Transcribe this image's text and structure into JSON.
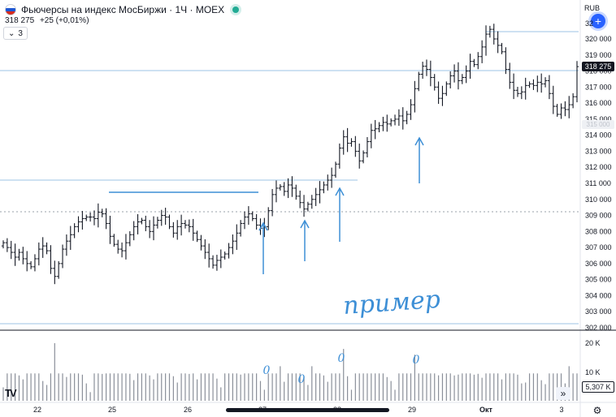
{
  "header": {
    "title": "Фьючерсы на индекс МосБиржи · 1Ч · MOEX",
    "price": "318 275",
    "change": "+25 (+0,01%)",
    "collapse_count": "3",
    "currency": "RUB"
  },
  "price_axis": {
    "labels": [
      "320 000",
      "319 000",
      "318 000",
      "317 000",
      "316 000",
      "315 000",
      "314 000",
      "313 000",
      "312 000",
      "311 000",
      "310 000",
      "309 000",
      "308 000",
      "307 000",
      "306 000",
      "305 000",
      "304 000",
      "303 000",
      "302 000"
    ],
    "top_partial": "32",
    "current_price_tag": "318 275",
    "ghost_tag": "315 000"
  },
  "volume_axis": {
    "labels": [
      "20 K",
      "10 K"
    ],
    "current_volume_tag": "5,307 K"
  },
  "time_axis": {
    "labels": [
      "22",
      "25",
      "26",
      "27",
      "28",
      "29",
      "Окт",
      "3"
    ]
  },
  "annotation": {
    "handwritten_text": "пример",
    "volume_marks": [
      "0",
      "0",
      "0",
      "0"
    ]
  },
  "colors": {
    "accent": "#2962ff",
    "drawing": "#3d8fd6",
    "candle": "#131722",
    "line": "#5b9bd5"
  },
  "controls": {
    "plus_icon": "plus-icon",
    "scroll_icon": "double-chevron-right-icon",
    "settings_icon": "gear-icon",
    "logo": "TV"
  }
}
